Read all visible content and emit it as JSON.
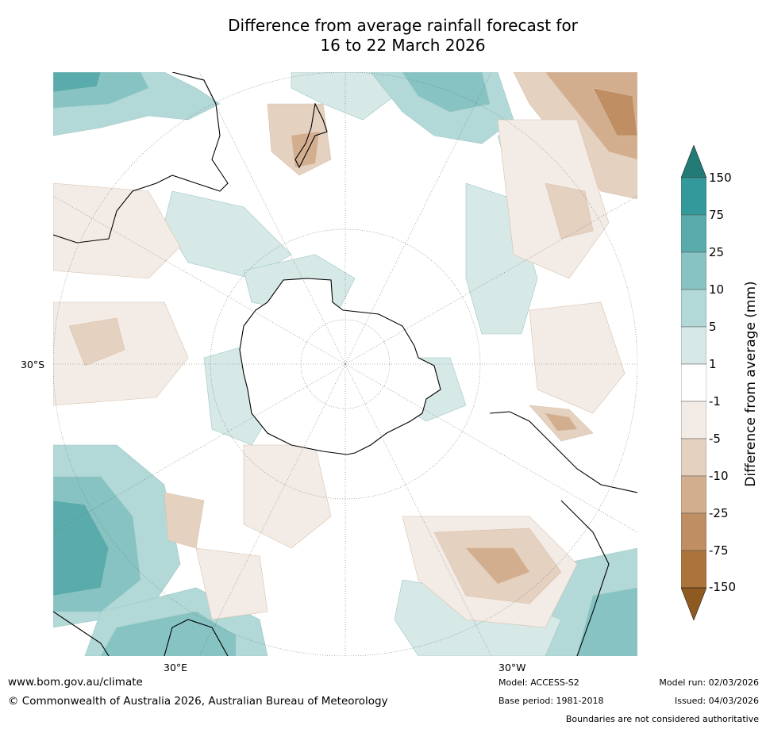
{
  "title": {
    "line1": "Difference from average rainfall forecast for",
    "line2": "16 to 22 March 2026"
  },
  "map": {
    "projection": "south-polar-stereographic",
    "lat_labels": {
      "left": "30°S",
      "bottom_left": "30°E",
      "bottom_right": "30°W"
    }
  },
  "colorbar": {
    "title": "Difference from average (mm)",
    "ticks": [
      "150",
      "75",
      "25",
      "10",
      "5",
      "1",
      "-1",
      "-5",
      "-10",
      "-25",
      "-75",
      "-150"
    ],
    "colors": {
      "gt_150": "#237b78",
      "75_150": "#34999a",
      "25_75": "#5aabab",
      "10_25": "#86c3c2",
      "5_10": "#b2d9d8",
      "1_5": "#d6e9e7",
      "neutral": "#ffffff",
      "m5_m1": "#f3ece6",
      "m10_m5": "#e5d1c0",
      "m25_m10": "#d2ae8e",
      "m75_m25": "#bf8f63",
      "m150_m75": "#ad733c",
      "lt_m150": "#8e5a22"
    }
  },
  "footer": {
    "url": "www.bom.gov.au/climate",
    "copyright": "© Commonwealth of Australia 2026, Australian Bureau of Meteorology",
    "model": "Model: ACCESS-S2",
    "base_period": "Base period: 1981-2018",
    "model_run": "Model run: 02/03/2026",
    "issued": "Issued: 04/03/2026",
    "disclaimer": "Boundaries are not considered authoritative"
  }
}
